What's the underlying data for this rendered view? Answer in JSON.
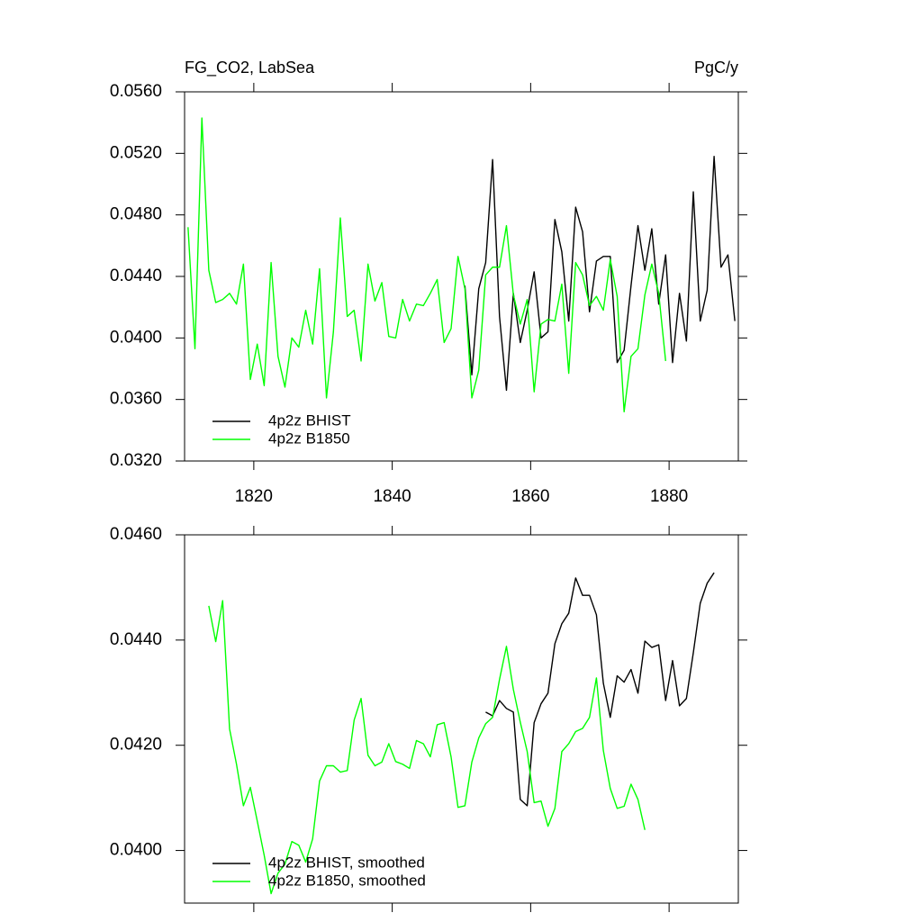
{
  "chart_data": [
    {
      "type": "line",
      "title": "FG_CO2, LabSea",
      "units": "PgC/y",
      "x": [
        1810.5,
        1811.5,
        1812.5,
        1813.5,
        1814.5,
        1815.5,
        1816.5,
        1817.5,
        1818.5,
        1819.5,
        1820.5,
        1821.5,
        1822.5,
        1823.5,
        1824.5,
        1825.5,
        1826.5,
        1827.5,
        1828.5,
        1829.5,
        1830.5,
        1831.5,
        1832.5,
        1833.5,
        1834.5,
        1835.5,
        1836.5,
        1837.5,
        1838.5,
        1839.5,
        1840.5,
        1841.5,
        1842.5,
        1843.5,
        1844.5,
        1845.5,
        1846.5,
        1847.5,
        1848.5,
        1849.5,
        1850.5,
        1851.5,
        1852.5,
        1853.5,
        1854.5,
        1855.5,
        1856.5,
        1857.5,
        1858.5,
        1859.5,
        1860.5,
        1861.5,
        1862.5,
        1863.5,
        1864.5,
        1865.5,
        1866.5,
        1867.5,
        1868.5,
        1869.5,
        1870.5,
        1871.5,
        1872.5,
        1873.5,
        1874.5,
        1875.5,
        1876.5,
        1877.5,
        1878.5,
        1879.5,
        1880.5,
        1881.5,
        1882.5,
        1883.5,
        1884.5,
        1885.5,
        1886.5,
        1887.5,
        1888.5,
        1889.5
      ],
      "series": [
        {
          "name": "4p2z BHIST",
          "color": "#000000",
          "values": [
            null,
            null,
            null,
            null,
            null,
            null,
            null,
            null,
            null,
            null,
            null,
            null,
            null,
            null,
            null,
            null,
            null,
            null,
            null,
            null,
            null,
            null,
            null,
            null,
            null,
            null,
            null,
            null,
            null,
            null,
            null,
            null,
            null,
            null,
            null,
            null,
            null,
            null,
            null,
            null,
            0.0434,
            0.0376,
            0.0432,
            0.0449,
            0.0516,
            0.0414,
            0.0366,
            0.0429,
            0.0397,
            0.0418,
            0.0443,
            0.04,
            0.0404,
            0.0477,
            0.0456,
            0.0411,
            0.0485,
            0.0469,
            0.0417,
            0.045,
            0.0453,
            0.0453,
            0.0384,
            0.0392,
            0.0434,
            0.0473,
            0.0444,
            0.0471,
            0.0422,
            0.0454,
            0.0384,
            0.0429,
            0.0398,
            0.0495,
            0.0411,
            0.0431,
            0.0518,
            0.0446,
            0.0454,
            0.0411
          ]
        },
        {
          "name": "4p2z B1850",
          "color": "#00ff00",
          "values": [
            0.0472,
            0.0393,
            0.0543,
            0.0444,
            0.0423,
            0.0425,
            0.0429,
            0.0422,
            0.0448,
            0.0373,
            0.0396,
            0.0369,
            0.0449,
            0.0388,
            0.0368,
            0.04,
            0.0394,
            0.0418,
            0.0396,
            0.0445,
            0.0361,
            0.0404,
            0.0478,
            0.0414,
            0.0418,
            0.0385,
            0.0448,
            0.0424,
            0.0436,
            0.0401,
            0.04,
            0.0425,
            0.0411,
            0.0422,
            0.0421,
            0.0429,
            0.0438,
            0.0397,
            0.0406,
            0.0453,
            0.0432,
            0.0361,
            0.0379,
            0.0441,
            0.0446,
            0.0446,
            0.0473,
            0.0428,
            0.0409,
            0.0425,
            0.0365,
            0.0409,
            0.0412,
            0.0411,
            0.0435,
            0.0377,
            0.0449,
            0.0441,
            0.0421,
            0.0427,
            0.0418,
            0.0451,
            0.0427,
            0.0352,
            0.0388,
            0.0393,
            0.0428,
            0.0448,
            0.0429,
            0.0385,
            null,
            null,
            null,
            null,
            null,
            null,
            null,
            null,
            null,
            null
          ]
        }
      ],
      "xlim": [
        1810,
        1890
      ],
      "xticks": [
        1820,
        1840,
        1860,
        1880
      ],
      "ylim": [
        0.032,
        0.056
      ],
      "yticks": [
        {
          "value": 0.032,
          "label": "0.0320"
        },
        {
          "value": 0.036,
          "label": "0.0360"
        },
        {
          "value": 0.04,
          "label": "0.0400"
        },
        {
          "value": 0.044,
          "label": "0.0440"
        },
        {
          "value": 0.048,
          "label": "0.0480"
        },
        {
          "value": 0.052,
          "label": "0.0520"
        },
        {
          "value": 0.056,
          "label": "0.0560"
        }
      ],
      "legend": "lower left"
    },
    {
      "type": "line",
      "x": [
        1810.5,
        1811.5,
        1812.5,
        1813.5,
        1814.5,
        1815.5,
        1816.5,
        1817.5,
        1818.5,
        1819.5,
        1820.5,
        1821.5,
        1822.5,
        1823.5,
        1824.5,
        1825.5,
        1826.5,
        1827.5,
        1828.5,
        1829.5,
        1830.5,
        1831.5,
        1832.5,
        1833.5,
        1834.5,
        1835.5,
        1836.5,
        1837.5,
        1838.5,
        1839.5,
        1840.5,
        1841.5,
        1842.5,
        1843.5,
        1844.5,
        1845.5,
        1846.5,
        1847.5,
        1848.5,
        1849.5,
        1850.5,
        1851.5,
        1852.5,
        1853.5,
        1854.5,
        1855.5,
        1856.5,
        1857.5,
        1858.5,
        1859.5,
        1860.5,
        1861.5,
        1862.5,
        1863.5,
        1864.5,
        1865.5,
        1866.5,
        1867.5,
        1868.5,
        1869.5,
        1870.5,
        1871.5,
        1872.5,
        1873.5,
        1874.5,
        1875.5,
        1876.5,
        1877.5,
        1878.5,
        1879.5,
        1880.5,
        1881.5,
        1882.5,
        1883.5,
        1884.5,
        1885.5,
        1886.5,
        1887.5,
        1888.5,
        1889.5
      ],
      "series": [
        {
          "name": "4p2z BHIST, smoothed",
          "color": "#000000",
          "values": [
            null,
            null,
            null,
            null,
            null,
            null,
            null,
            null,
            null,
            null,
            null,
            null,
            null,
            null,
            null,
            null,
            null,
            null,
            null,
            null,
            null,
            null,
            null,
            null,
            null,
            null,
            null,
            null,
            null,
            null,
            null,
            null,
            null,
            null,
            null,
            null,
            null,
            null,
            null,
            null,
            null,
            null,
            null,
            0.04263,
            0.04256,
            0.04285,
            0.0427,
            0.04263,
            0.04097,
            0.04085,
            0.04243,
            0.04279,
            0.04299,
            0.04393,
            0.04431,
            0.04451,
            0.04518,
            0.04485,
            0.04485,
            0.04448,
            0.04318,
            0.04253,
            0.04332,
            0.0432,
            0.04344,
            0.04299,
            0.04398,
            0.04386,
            0.04391,
            0.04285,
            0.04361,
            0.04275,
            0.04289,
            0.04376,
            0.0447,
            0.04508,
            0.04528,
            null,
            null,
            null
          ]
        },
        {
          "name": "4p2z B1850, smoothed",
          "color": "#00ff00",
          "values": [
            null,
            null,
            null,
            0.04465,
            0.04397,
            0.04475,
            0.04231,
            0.04164,
            0.04085,
            0.0412,
            0.04056,
            0.03991,
            0.03918,
            0.03957,
            0.03974,
            0.04017,
            0.0401,
            0.03978,
            0.04022,
            0.04132,
            0.04161,
            0.04161,
            0.04149,
            0.04152,
            0.04248,
            0.04289,
            0.04181,
            0.04161,
            0.04168,
            0.04203,
            0.04169,
            0.04164,
            0.04156,
            0.04209,
            0.04203,
            0.04178,
            0.04239,
            0.04243,
            0.04178,
            0.04082,
            0.04085,
            0.04168,
            0.04214,
            0.04241,
            0.04253,
            0.04325,
            0.04388,
            0.04306,
            0.04244,
            0.04188,
            0.04091,
            0.04094,
            0.04046,
            0.0408,
            0.04188,
            0.04203,
            0.04226,
            0.04232,
            0.04253,
            0.04328,
            0.0419,
            0.04118,
            0.0408,
            0.04084,
            0.04126,
            0.04097,
            0.04039,
            null,
            null,
            null,
            null,
            null,
            null,
            null,
            null,
            null,
            null,
            null,
            null,
            null
          ]
        }
      ],
      "xlim": [
        1810,
        1890
      ],
      "xticks": [
        {
          "value": 1820,
          "label": null
        },
        {
          "value": 1840,
          "label": null
        },
        {
          "value": 1860,
          "label": null
        },
        {
          "value": 1880,
          "label": null
        }
      ],
      "ylim": [
        0.039,
        0.046
      ],
      "yticks": [
        {
          "value": 0.04,
          "label": "0.0400"
        },
        {
          "value": 0.042,
          "label": "0.0420"
        },
        {
          "value": 0.044,
          "label": "0.0440"
        },
        {
          "value": 0.046,
          "label": "0.0460"
        }
      ],
      "legend": "lower left"
    }
  ]
}
